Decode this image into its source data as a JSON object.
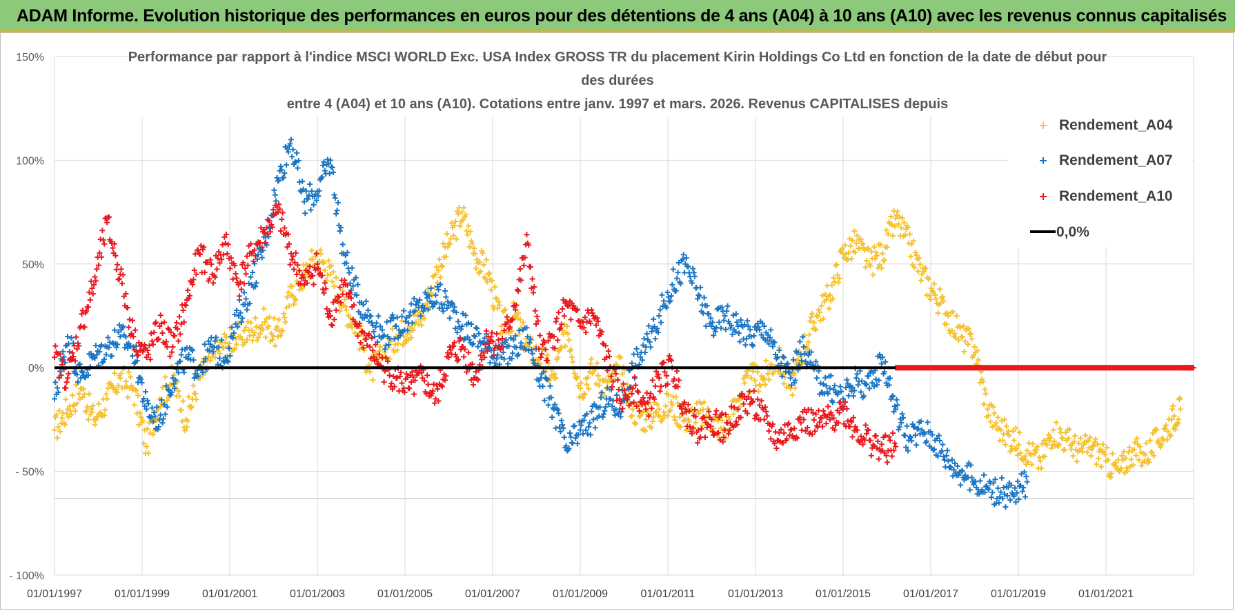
{
  "header": {
    "banner_title": "ADAM Informe. Evolution historique des performances en euros pour des détentions de 4 ans (A04) à 10 ans (A10) avec les revenus connus capitalisés",
    "banner_color": "#8cc97a"
  },
  "chart_data": {
    "type": "scatter",
    "title_lines": [
      "Performance par rapport à l'indice MSCI WORLD Exc. USA Index GROSS TR  du placement Kirin Holdings Co Ltd en fonction de la date de début pour",
      "des durées",
      "entre 4 (A04) et 10 ans (A10). Cotations entre janv. 1997 et mars. 2026. Revenus CAPITALISES depuis"
    ],
    "xlabel": "",
    "ylabel": "",
    "xlim": [
      1997.0,
      2023.0
    ],
    "ylim": [
      -100,
      150
    ],
    "grid": true,
    "y_ticks": [
      {
        "value": 150,
        "label": "150%"
      },
      {
        "value": 100,
        "label": "100%"
      },
      {
        "value": 50,
        "label": "50%"
      },
      {
        "value": 0,
        "label": "0%"
      },
      {
        "value": -50,
        "label": "- 50%"
      },
      {
        "value": -100,
        "label": "- 100%"
      }
    ],
    "x_ticks": [
      {
        "value": 1997,
        "label": "01/01/1997"
      },
      {
        "value": 1999,
        "label": "01/01/1999"
      },
      {
        "value": 2001,
        "label": "01/01/2001"
      },
      {
        "value": 2003,
        "label": "01/01/2003"
      },
      {
        "value": 2005,
        "label": "01/01/2005"
      },
      {
        "value": 2007,
        "label": "01/01/2007"
      },
      {
        "value": 2009,
        "label": "01/01/2009"
      },
      {
        "value": 2011,
        "label": "01/01/2011"
      },
      {
        "value": 2013,
        "label": "01/01/2013"
      },
      {
        "value": 2015,
        "label": "01/01/2015"
      },
      {
        "value": 2017,
        "label": "01/01/2017"
      },
      {
        "value": 2019,
        "label": "01/01/2019"
      },
      {
        "value": 2021,
        "label": "01/01/2021"
      }
    ],
    "legend_position": "top-right",
    "reference_line": {
      "name": "0,0%",
      "value": 0,
      "color": "#000000"
    },
    "series": [
      {
        "name": "Rendement_A04",
        "color": "#f5c12e",
        "x": [
          1997.0,
          1997.3,
          1997.6,
          1997.9,
          1998.2,
          1998.5,
          1998.8,
          1999.1,
          1999.4,
          1999.7,
          2000.0,
          2000.3,
          2000.6,
          2000.9,
          2001.2,
          2001.5,
          2001.8,
          2002.1,
          2002.4,
          2002.7,
          2003.0,
          2003.3,
          2003.6,
          2003.9,
          2004.2,
          2004.5,
          2004.8,
          2005.1,
          2005.4,
          2005.7,
          2006.0,
          2006.3,
          2006.6,
          2006.9,
          2007.2,
          2007.5,
          2007.8,
          2008.1,
          2008.4,
          2008.7,
          2009.0,
          2009.3,
          2009.6,
          2009.9,
          2010.2,
          2010.5,
          2010.8,
          2011.1,
          2011.4,
          2011.7,
          2012.0,
          2012.3,
          2012.6,
          2012.9,
          2013.2,
          2013.5,
          2013.8,
          2014.1,
          2014.4,
          2014.7,
          2015.0,
          2015.3,
          2015.6,
          2015.9,
          2016.2,
          2016.5,
          2016.8,
          2017.1,
          2017.4,
          2017.7,
          2018.0,
          2018.3,
          2018.6,
          2018.9,
          2019.2,
          2019.5,
          2019.8,
          2020.1,
          2020.4,
          2020.7,
          2021.0,
          2021.3,
          2021.6,
          2021.9,
          2022.2,
          2022.5,
          2022.7
        ],
        "y": [
          -30,
          -20,
          -10,
          -25,
          -15,
          -5,
          -10,
          -38,
          -15,
          -5,
          -25,
          -5,
          5,
          12,
          15,
          18,
          22,
          15,
          35,
          45,
          55,
          45,
          30,
          20,
          -2,
          5,
          15,
          20,
          25,
          45,
          60,
          75,
          55,
          45,
          20,
          25,
          10,
          5,
          -5,
          20,
          -10,
          0,
          -10,
          0,
          -20,
          -25,
          -20,
          -18,
          -25,
          -22,
          -25,
          -30,
          -15,
          -5,
          -5,
          5,
          -10,
          10,
          25,
          35,
          55,
          60,
          50,
          55,
          72,
          60,
          45,
          35,
          25,
          15,
          10,
          -20,
          -30,
          -35,
          -40,
          -45,
          -30,
          -35,
          -40,
          -38,
          -45,
          -50,
          -40,
          -42,
          -35,
          -25,
          -20
        ]
      },
      {
        "name": "Rendement_A07",
        "color": "#1a75c4",
        "x": [
          1997.0,
          1997.3,
          1997.6,
          1997.9,
          1998.2,
          1998.5,
          1998.8,
          1999.1,
          1999.4,
          1999.7,
          2000.0,
          2000.3,
          2000.6,
          2000.9,
          2001.2,
          2001.5,
          2001.8,
          2002.1,
          2002.4,
          2002.7,
          2003.0,
          2003.3,
          2003.6,
          2003.9,
          2004.2,
          2004.5,
          2004.8,
          2005.1,
          2005.4,
          2005.7,
          2006.0,
          2006.3,
          2006.6,
          2006.9,
          2007.2,
          2007.5,
          2007.8,
          2008.1,
          2008.4,
          2008.7,
          2009.0,
          2009.3,
          2009.6,
          2009.9,
          2010.2,
          2010.5,
          2010.8,
          2011.1,
          2011.4,
          2011.7,
          2012.0,
          2012.3,
          2012.6,
          2012.9,
          2013.2,
          2013.5,
          2013.8,
          2014.1,
          2014.4,
          2014.7,
          2015.0,
          2015.3,
          2015.6,
          2015.9,
          2016.2,
          2016.5,
          2016.8,
          2017.1,
          2017.4,
          2017.7,
          2018.0,
          2018.3,
          2018.6,
          2018.9,
          2019.2
        ],
        "y": [
          -15,
          15,
          -5,
          5,
          10,
          15,
          10,
          -20,
          -25,
          -5,
          5,
          0,
          10,
          5,
          25,
          40,
          60,
          90,
          110,
          80,
          85,
          100,
          55,
          35,
          25,
          15,
          20,
          25,
          30,
          35,
          30,
          20,
          15,
          10,
          5,
          10,
          15,
          -5,
          -20,
          -40,
          -30,
          -25,
          -15,
          -20,
          0,
          10,
          25,
          40,
          50,
          35,
          20,
          25,
          20,
          15,
          20,
          5,
          -5,
          10,
          -5,
          -10,
          -15,
          -5,
          -10,
          5,
          -20,
          -35,
          -30,
          -35,
          -45,
          -50,
          -55,
          -58,
          -60,
          -62,
          -55
        ]
      },
      {
        "name": "Rendement_A10",
        "color": "#e8191f",
        "x": [
          1997.0,
          1997.3,
          1997.6,
          1997.9,
          1998.2,
          1998.5,
          1998.8,
          1999.1,
          1999.4,
          1999.7,
          2000.0,
          2000.3,
          2000.6,
          2000.9,
          2001.2,
          2001.5,
          2001.8,
          2002.1,
          2002.4,
          2002.7,
          2003.0,
          2003.3,
          2003.6,
          2003.9,
          2004.2,
          2004.5,
          2004.8,
          2005.1,
          2005.4,
          2005.7,
          2006.0,
          2006.3,
          2006.6,
          2006.9,
          2007.2,
          2007.5,
          2007.8,
          2008.1,
          2008.4,
          2008.7,
          2009.0,
          2009.3,
          2009.6,
          2009.9,
          2010.2,
          2010.5,
          2010.8,
          2011.1,
          2011.4,
          2011.7,
          2012.0,
          2012.3,
          2012.6,
          2012.9,
          2013.2,
          2013.5,
          2013.8,
          2014.1,
          2014.4,
          2014.7,
          2015.0,
          2015.3,
          2015.6,
          2015.9,
          2016.2
        ],
        "y": [
          5,
          -5,
          20,
          40,
          70,
          45,
          15,
          5,
          20,
          10,
          30,
          55,
          45,
          60,
          40,
          55,
          65,
          75,
          55,
          40,
          50,
          25,
          40,
          20,
          10,
          0,
          -5,
          -10,
          -5,
          -15,
          5,
          10,
          -5,
          15,
          10,
          30,
          60,
          5,
          15,
          30,
          20,
          25,
          5,
          -15,
          -10,
          -20,
          -5,
          0,
          -20,
          -30,
          -25,
          -30,
          -20,
          -15,
          -25,
          -35,
          -30,
          -25,
          -28,
          -25,
          -20,
          -30,
          -35,
          -40,
          -38
        ]
      },
      {
        "name": "Rendement_A10",
        "color": "#e8191f",
        "x": [
          2016.2,
          2016.7,
          2017.2,
          2017.7,
          2018.2,
          2018.7,
          2019.2,
          2019.7,
          2020.2,
          2020.7,
          2021.2,
          2021.7,
          2022.2,
          2022.7,
          2023.0
        ],
        "y": [
          0,
          0,
          0,
          0,
          0,
          0,
          0,
          0,
          0,
          0,
          0,
          0,
          0,
          0,
          0
        ]
      }
    ]
  }
}
